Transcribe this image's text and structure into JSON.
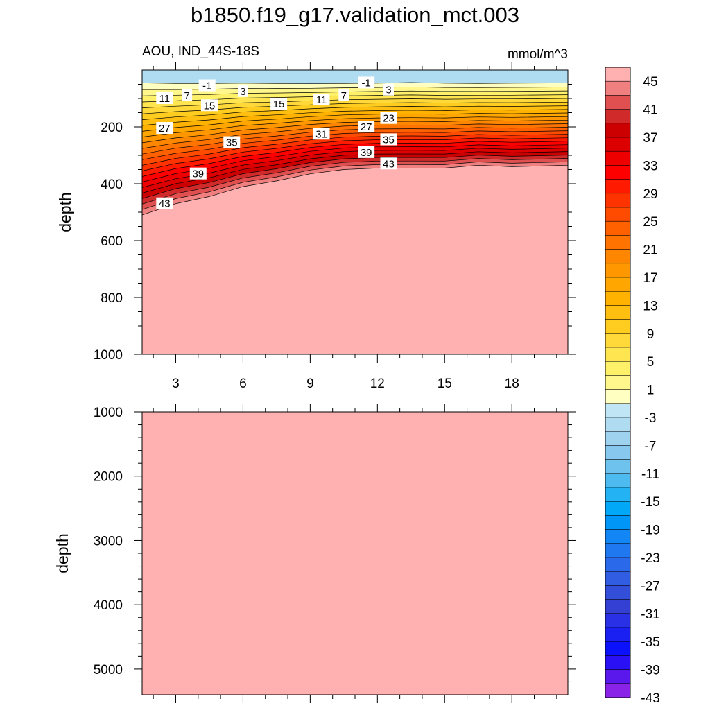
{
  "title": "b1850.f19_g17.validation_mct.003",
  "left_string": "AOU, IND_44S-18S",
  "right_string": "mmol/m^3",
  "chart_data": [
    {
      "type": "contour",
      "panel": "upper",
      "ylabel": "depth",
      "ylim": [
        1000,
        0
      ],
      "yticks": [
        200,
        400,
        600,
        800,
        1000
      ],
      "xlim": [
        1.5,
        20.5
      ],
      "xticks": [
        3,
        6,
        9,
        12,
        15,
        18
      ],
      "x": [
        1.5,
        3,
        4.5,
        6,
        7.5,
        9,
        10.5,
        12,
        13.5,
        15,
        16.5,
        18,
        20.5
      ],
      "shallow_contour": {
        "level": -1,
        "depth": [
          45,
          47,
          47,
          46,
          47,
          48,
          47,
          46,
          44,
          46,
          47,
          46,
          45
        ]
      },
      "deep_contour": {
        "level": 45,
        "depth": [
          510,
          470,
          445,
          410,
          390,
          365,
          350,
          345,
          345,
          345,
          335,
          340,
          335
        ]
      },
      "contour_labels": [
        {
          "x": 4.4,
          "depth": 55,
          "text": "-1"
        },
        {
          "x": 6.0,
          "depth": 75,
          "text": "3"
        },
        {
          "x": 2.5,
          "depth": 100,
          "text": "11"
        },
        {
          "x": 3.5,
          "depth": 90,
          "text": "7"
        },
        {
          "x": 4.5,
          "depth": 125,
          "text": "15"
        },
        {
          "x": 7.6,
          "depth": 120,
          "text": "15"
        },
        {
          "x": 9.5,
          "depth": 105,
          "text": "11"
        },
        {
          "x": 10.5,
          "depth": 90,
          "text": "7"
        },
        {
          "x": 11.5,
          "depth": 45,
          "text": "-1"
        },
        {
          "x": 12.5,
          "depth": 70,
          "text": "3"
        },
        {
          "x": 12.5,
          "depth": 170,
          "text": "23"
        },
        {
          "x": 2.5,
          "depth": 205,
          "text": "27"
        },
        {
          "x": 11.5,
          "depth": 200,
          "text": "27"
        },
        {
          "x": 9.5,
          "depth": 225,
          "text": "31"
        },
        {
          "x": 12.5,
          "depth": 245,
          "text": "35"
        },
        {
          "x": 5.5,
          "depth": 255,
          "text": "35"
        },
        {
          "x": 11.5,
          "depth": 290,
          "text": "39"
        },
        {
          "x": 12.5,
          "depth": 330,
          "text": "43"
        },
        {
          "x": 4.0,
          "depth": 365,
          "text": "39"
        },
        {
          "x": 2.5,
          "depth": 470,
          "text": "43"
        }
      ]
    },
    {
      "type": "contour",
      "panel": "lower",
      "ylabel": "depth",
      "ylim": [
        5400,
        1000
      ],
      "yticks": [
        1000,
        2000,
        3000,
        4000,
        5000
      ],
      "xlim": [
        1.5,
        20.5
      ],
      "fill_level": 47
    }
  ],
  "colorbar": {
    "labels": [
      "45",
      "41",
      "37",
      "33",
      "29",
      "25",
      "21",
      "17",
      "13",
      "9",
      "5",
      "1",
      "-3",
      "-7",
      "-11",
      "-15",
      "-19",
      "-23",
      "-27",
      "-31",
      "-35",
      "-39",
      "-43"
    ],
    "colors": [
      "#ffb0b0",
      "#f07f7f",
      "#e05050",
      "#d02a2a",
      "#cc0000",
      "#dd0000",
      "#ee0000",
      "#ff0000",
      "#ff1a00",
      "#ff3300",
      "#ff4b00",
      "#ff6000",
      "#ff7300",
      "#ff8600",
      "#ff9700",
      "#ffa600",
      "#ffb200",
      "#ffbf10",
      "#ffcc20",
      "#ffd93a",
      "#ffe54f",
      "#fff06a",
      "#fff78c",
      "#ffffc2",
      "#c0e6f5",
      "#b0dcf2",
      "#9fd2ef",
      "#87c9ee",
      "#6ec3ee",
      "#4dbaf0",
      "#23b2f3",
      "#00a8f7",
      "#0096f8",
      "#1386f6",
      "#1f78f0",
      "#2a6aea",
      "#305de2",
      "#334ed9",
      "#3340d3",
      "#2a30e6",
      "#1a20f2",
      "#0b12fb",
      "#2a10f5",
      "#5b18ec",
      "#8a22e8"
    ]
  }
}
